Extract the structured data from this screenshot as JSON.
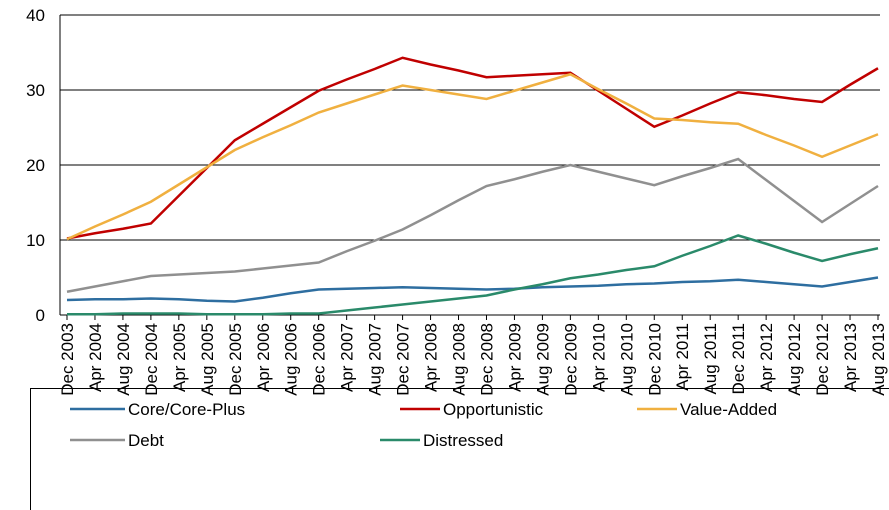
{
  "chart_data": {
    "type": "line",
    "categories": [
      "Dec 2003",
      "Apr 2004",
      "Aug 2004",
      "Dec 2004",
      "Apr 2005",
      "Aug 2005",
      "Dec 2005",
      "Apr 2006",
      "Aug 2006",
      "Dec 2006",
      "Apr 2007",
      "Aug 2007",
      "Dec 2007",
      "Apr 2008",
      "Aug 2008",
      "Dec 2008",
      "Apr 2009",
      "Aug 2009",
      "Dec 2009",
      "Apr 2010",
      "Aug 2010",
      "Dec 2010",
      "Apr 2011",
      "Aug 2011",
      "Dec 2011",
      "Apr 2012",
      "Aug 2012",
      "Dec 2012",
      "Apr 2013",
      "Aug 2013"
    ],
    "series": [
      {
        "name": "Core/Core-Plus",
        "color": "#2e6ea0",
        "values": [
          2.0,
          2.1,
          2.1,
          2.2,
          2.1,
          1.9,
          1.8,
          2.3,
          2.9,
          3.4,
          3.5,
          3.6,
          3.7,
          3.6,
          3.5,
          3.4,
          3.5,
          3.7,
          3.8,
          3.9,
          4.1,
          4.2,
          4.4,
          4.5,
          4.7,
          4.4,
          4.1,
          3.8,
          4.4,
          5.0
        ]
      },
      {
        "name": "Opportunistic",
        "color": "#c00000",
        "values": [
          10.2,
          10.9,
          11.5,
          12.2,
          15.9,
          19.6,
          23.3,
          25.5,
          27.7,
          29.9,
          31.4,
          32.8,
          34.3,
          33.4,
          32.6,
          31.7,
          31.9,
          32.1,
          32.3,
          29.9,
          27.5,
          25.1,
          26.6,
          28.2,
          29.7,
          29.3,
          28.8,
          28.4,
          30.7,
          32.9
        ]
      },
      {
        "name": "Value-Added",
        "color": "#f0b040",
        "values": [
          10.1,
          11.8,
          13.4,
          15.1,
          17.4,
          19.7,
          22.0,
          23.7,
          25.3,
          27.0,
          28.2,
          29.4,
          30.6,
          30.0,
          29.4,
          28.8,
          29.9,
          31.0,
          32.1,
          30.1,
          28.2,
          26.2,
          26.0,
          25.7,
          25.5,
          24.0,
          22.6,
          21.1,
          22.6,
          24.1
        ]
      },
      {
        "name": "Debt",
        "color": "#909090",
        "values": [
          3.1,
          3.8,
          4.5,
          5.2,
          5.4,
          5.6,
          5.8,
          6.2,
          6.6,
          7.0,
          8.5,
          9.9,
          11.4,
          13.3,
          15.3,
          17.2,
          18.1,
          19.1,
          20.0,
          19.1,
          18.2,
          17.3,
          18.5,
          19.6,
          20.8,
          18.0,
          15.2,
          12.4,
          14.8,
          17.2
        ]
      },
      {
        "name": "Distressed",
        "color": "#2a8a6a",
        "values": [
          0.1,
          0.1,
          0.2,
          0.2,
          0.2,
          0.1,
          0.1,
          0.1,
          0.2,
          0.2,
          0.6,
          1.0,
          1.4,
          1.8,
          2.2,
          2.6,
          3.4,
          4.1,
          4.9,
          5.4,
          6.0,
          6.5,
          7.9,
          9.2,
          10.6,
          9.5,
          8.3,
          7.2,
          8.1,
          8.9
        ]
      }
    ],
    "ylim": [
      0,
      40
    ],
    "yticks": [
      0,
      10,
      20,
      30,
      40
    ],
    "grid": true
  }
}
